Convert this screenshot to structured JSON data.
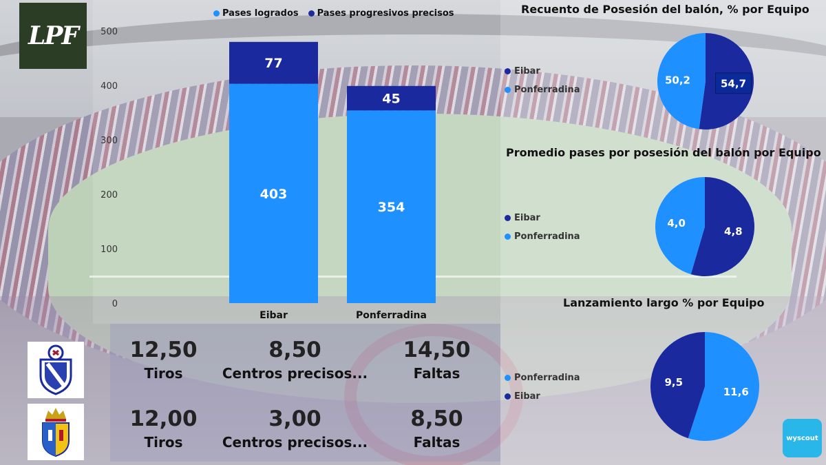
{
  "logo": {
    "text": "LPF"
  },
  "legend": [
    {
      "label": "Pases logrados",
      "color": "#1e90ff"
    },
    {
      "label": "Pases progresivos precisos",
      "color": "#1a2a9e"
    }
  ],
  "chart_data": [
    {
      "type": "bar",
      "stacked": true,
      "categories": [
        "Eibar",
        "Ponferradina"
      ],
      "series": [
        {
          "name": "Pases logrados",
          "values": [
            403,
            354
          ],
          "color": "#1e90ff"
        },
        {
          "name": "Pases progresivos precisos",
          "values": [
            77,
            45
          ],
          "color": "#1a2a9e"
        }
      ],
      "yticks": [
        "0",
        "100",
        "200",
        "300",
        "400",
        "500"
      ],
      "ylim": [
        0,
        500
      ],
      "title": "",
      "xlabel": "",
      "ylabel": "",
      "legend_position": "top"
    },
    {
      "type": "pie",
      "title": "Recuento de Posesión del balón, % por Equipo",
      "legend": [
        "Eibar",
        "Ponferradina"
      ],
      "slices": [
        {
          "name": "Eibar",
          "value": 54.7,
          "label": "54,7",
          "color": "#1a2a9e"
        },
        {
          "name": "Ponferradina",
          "value": 50.2,
          "label": "50,2",
          "color": "#1e90ff"
        }
      ]
    },
    {
      "type": "pie",
      "title": "Promedio pases por posesión del balón por Equipo",
      "legend": [
        "Eibar",
        "Ponferradina"
      ],
      "slices": [
        {
          "name": "Eibar",
          "value": 4.8,
          "label": "4,8",
          "color": "#1a2a9e"
        },
        {
          "name": "Ponferradina",
          "value": 4.0,
          "label": "4,0",
          "color": "#1e90ff"
        }
      ]
    },
    {
      "type": "pie",
      "title": "Lanzamiento largo % por Equipo",
      "legend": [
        "Ponferradina",
        "Eibar"
      ],
      "slices": [
        {
          "name": "Ponferradina",
          "value": 11.6,
          "label": "11,6",
          "color": "#1e90ff"
        },
        {
          "name": "Eibar",
          "value": 9.5,
          "label": "9,5",
          "color": "#1a2a9e"
        }
      ]
    }
  ],
  "stats": [
    {
      "team": "Eibar",
      "cells": [
        {
          "value": "12,50",
          "label": "Tiros"
        },
        {
          "value": "8,50",
          "label": "Centros precisos..."
        },
        {
          "value": "14,50",
          "label": "Faltas"
        }
      ]
    },
    {
      "team": "Ponferradina",
      "cells": [
        {
          "value": "12,00",
          "label": "Tiros"
        },
        {
          "value": "3,00",
          "label": "Centros precisos..."
        },
        {
          "value": "8,50",
          "label": "Faltas"
        }
      ]
    }
  ],
  "wyscout": {
    "text": "wyscout"
  },
  "colors": {
    "eibar": "#1a2a9e",
    "ponferradina": "#1e90ff"
  }
}
